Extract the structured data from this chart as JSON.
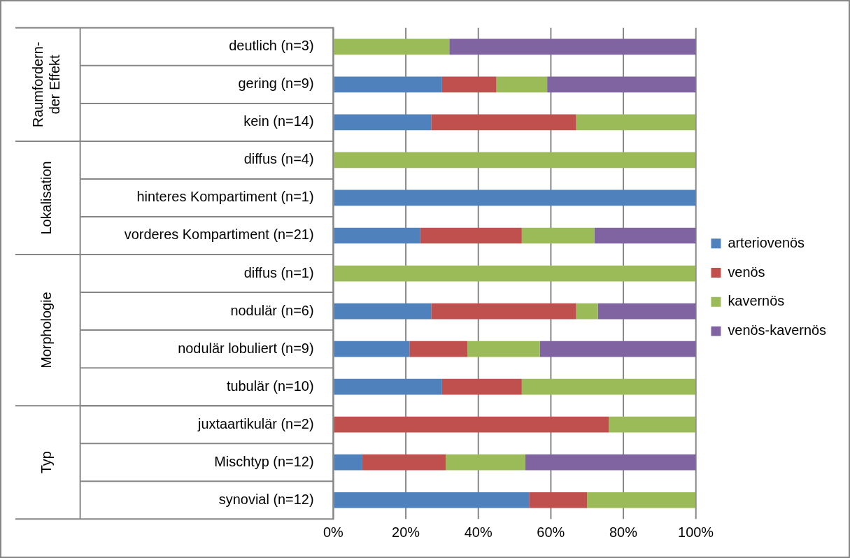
{
  "chart_data": {
    "type": "bar",
    "orientation": "horizontal",
    "stacked": true,
    "categories": [
      "deutlich (n=3)",
      "gering (n=9)",
      "kein (n=14)",
      "diffus (n=4)",
      "hinteres Kompartiment (n=1)",
      "vorderes Kompartiment (n=21)",
      "diffus (n=1)",
      "nodulär (n=6)",
      "nodulär lobuliert (n=9)",
      "tubulär (n=10)",
      "juxtaartikulär (n=2)",
      "Mischtyp (n=12)",
      "synovial (n=12)"
    ],
    "series": [
      {
        "name": "arteriovenös",
        "color": "#4f81bd",
        "values": [
          0,
          30,
          27,
          0,
          100,
          24,
          0,
          27,
          21,
          30,
          0,
          8,
          54
        ]
      },
      {
        "name": "venös",
        "color": "#c0504d",
        "values": [
          0,
          15,
          40,
          0,
          0,
          28,
          0,
          40,
          16,
          22,
          76,
          23,
          16
        ]
      },
      {
        "name": "kavernös",
        "color": "#9bbb59",
        "values": [
          32,
          14,
          33,
          100,
          0,
          20,
          100,
          6,
          20,
          48,
          24,
          22,
          30
        ]
      },
      {
        "name": "venös-kavernös",
        "color": "#8064a2",
        "values": [
          68,
          41,
          0,
          0,
          0,
          28,
          0,
          27,
          43,
          0,
          0,
          47,
          0
        ]
      }
    ],
    "xlim": [
      0,
      100
    ],
    "xticks": [
      {
        "value": 0,
        "label": "0%"
      },
      {
        "value": 20,
        "label": "20%"
      },
      {
        "value": 40,
        "label": "40%"
      },
      {
        "value": 60,
        "label": "60%"
      },
      {
        "value": 80,
        "label": "80%"
      },
      {
        "value": 100,
        "label": "100%"
      }
    ],
    "grid": "x",
    "legend": "right",
    "annotations": [
      "Raumfordern-\nder Effekt",
      "Lokalisation",
      "Morphologie",
      "Typ"
    ]
  }
}
